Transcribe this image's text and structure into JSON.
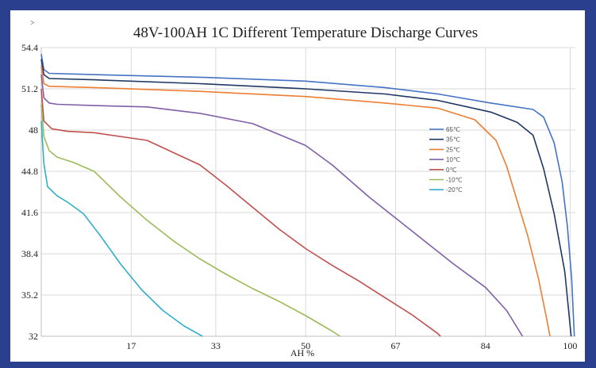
{
  "chart_data": {
    "type": "line",
    "title": "48V-100AH 1C Different Temperature Discharge Curves",
    "corner_mark": ">",
    "xlabel": "AH %",
    "ylabel": "",
    "xlim": [
      0,
      101
    ],
    "ylim": [
      32,
      54.4
    ],
    "x_ticks": [
      17,
      33,
      50,
      67,
      84,
      100
    ],
    "y_ticks": [
      32,
      35.2,
      38.4,
      41.6,
      44.8,
      48,
      51.2,
      54.4
    ],
    "y_tick_labels": [
      "32",
      "35.2",
      "38.4",
      "41.6",
      "44.8",
      "48",
      "51.2",
      "54.4"
    ],
    "grid": true,
    "legend_position": "right",
    "series": [
      {
        "name": "65℃",
        "color": "#4472c4",
        "points": [
          [
            0,
            53.9
          ],
          [
            0.5,
            52.7
          ],
          [
            1.5,
            52.4
          ],
          [
            10,
            52.3
          ],
          [
            30,
            52.1
          ],
          [
            50,
            51.8
          ],
          [
            65,
            51.3
          ],
          [
            75,
            50.8
          ],
          [
            85,
            50.1
          ],
          [
            93,
            49.6
          ],
          [
            95,
            49.0
          ],
          [
            97,
            47.0
          ],
          [
            98.5,
            44.0
          ],
          [
            99.5,
            40.5
          ],
          [
            100.3,
            36.5
          ],
          [
            100.8,
            32
          ]
        ]
      },
      {
        "name": "35℃",
        "color": "#1f3864",
        "points": [
          [
            0,
            53.5
          ],
          [
            0.5,
            52.3
          ],
          [
            1.5,
            52.0
          ],
          [
            10,
            51.9
          ],
          [
            30,
            51.6
          ],
          [
            50,
            51.2
          ],
          [
            65,
            50.8
          ],
          [
            75,
            50.3
          ],
          [
            85,
            49.4
          ],
          [
            90,
            48.6
          ],
          [
            93,
            47.6
          ],
          [
            95,
            45.0
          ],
          [
            97,
            41.5
          ],
          [
            99,
            37.0
          ],
          [
            100.2,
            32
          ]
        ]
      },
      {
        "name": "25℃",
        "color": "#ed7d31",
        "points": [
          [
            0,
            53.0
          ],
          [
            0.5,
            51.6
          ],
          [
            1.5,
            51.4
          ],
          [
            10,
            51.3
          ],
          [
            30,
            51.0
          ],
          [
            50,
            50.6
          ],
          [
            65,
            50.1
          ],
          [
            75,
            49.7
          ],
          [
            82,
            48.8
          ],
          [
            86,
            47.2
          ],
          [
            88,
            45.2
          ],
          [
            90,
            42.5
          ],
          [
            92,
            39.8
          ],
          [
            94,
            36.5
          ],
          [
            95.5,
            33.5
          ],
          [
            96.2,
            32
          ]
        ]
      },
      {
        "name": "10℃",
        "color": "#7f5fa8",
        "points": [
          [
            0,
            52.3
          ],
          [
            0.5,
            50.5
          ],
          [
            1.5,
            50.1
          ],
          [
            3,
            50.0
          ],
          [
            10,
            49.9
          ],
          [
            20,
            49.8
          ],
          [
            30,
            49.3
          ],
          [
            40,
            48.5
          ],
          [
            50,
            46.8
          ],
          [
            55,
            45.3
          ],
          [
            62,
            42.8
          ],
          [
            70,
            40.2
          ],
          [
            78,
            37.6
          ],
          [
            84,
            35.8
          ],
          [
            88,
            34.0
          ],
          [
            91,
            32
          ]
        ]
      },
      {
        "name": "0℃",
        "color": "#c0504d",
        "points": [
          [
            0,
            51.2
          ],
          [
            0.5,
            48.7
          ],
          [
            2,
            48.1
          ],
          [
            5,
            47.9
          ],
          [
            10,
            47.8
          ],
          [
            20,
            47.2
          ],
          [
            30,
            45.3
          ],
          [
            35,
            43.7
          ],
          [
            40,
            42.0
          ],
          [
            45,
            40.3
          ],
          [
            50,
            38.8
          ],
          [
            55,
            37.5
          ],
          [
            60,
            36.3
          ],
          [
            65,
            35.0
          ],
          [
            70,
            33.7
          ],
          [
            75,
            32.2
          ],
          [
            75.5,
            32
          ]
        ]
      },
      {
        "name": "-10℃",
        "color": "#9bbb59",
        "points": [
          [
            0,
            50.0
          ],
          [
            0.5,
            47.5
          ],
          [
            1.5,
            46.4
          ],
          [
            3,
            45.9
          ],
          [
            6,
            45.5
          ],
          [
            10,
            44.8
          ],
          [
            15,
            42.8
          ],
          [
            20,
            41.0
          ],
          [
            25,
            39.4
          ],
          [
            30,
            38.0
          ],
          [
            35,
            36.8
          ],
          [
            40,
            35.7
          ],
          [
            45,
            34.7
          ],
          [
            50,
            33.6
          ],
          [
            55,
            32.4
          ],
          [
            56.5,
            32
          ]
        ]
      },
      {
        "name": "-20℃",
        "color": "#2fb0c9",
        "points": [
          [
            0,
            48.7
          ],
          [
            0.5,
            45.4
          ],
          [
            1.2,
            43.6
          ],
          [
            3,
            42.9
          ],
          [
            5,
            42.4
          ],
          [
            8,
            41.5
          ],
          [
            11,
            39.9
          ],
          [
            15,
            37.6
          ],
          [
            19,
            35.6
          ],
          [
            23,
            34.0
          ],
          [
            27,
            32.8
          ],
          [
            30.5,
            32
          ]
        ]
      }
    ]
  }
}
